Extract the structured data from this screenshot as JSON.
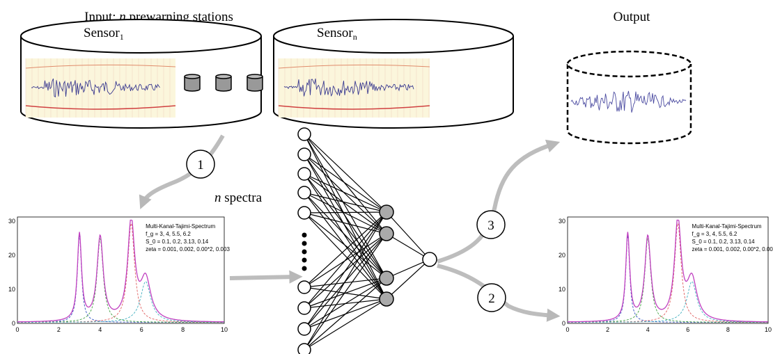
{
  "input_label": {
    "prefix": "Input: ",
    "var": "n",
    "suffix": " prewarning stations"
  },
  "output_label": "Output",
  "sensors": [
    {
      "name": "Sensor",
      "sub": "1"
    },
    {
      "name": "Sensor",
      "sub": "n"
    }
  ],
  "steps": [
    "1",
    "2",
    "3"
  ],
  "spectra_label": {
    "var": "n",
    "text": " spectra"
  },
  "spectrum_plot": {
    "legend": [
      "Multi-Kanal-Tajimi-Spectrum",
      "f_g = 3, 4, 5.5, 6.2",
      "S_0 = 0.1, 0.2, 3.13, 0.14",
      "zeta = 0.001, 0.002, 0.00*2, 0.003"
    ],
    "xticks": [
      0,
      2,
      4,
      6,
      8,
      10
    ],
    "yticks": [
      0,
      10,
      20,
      30
    ]
  }
}
